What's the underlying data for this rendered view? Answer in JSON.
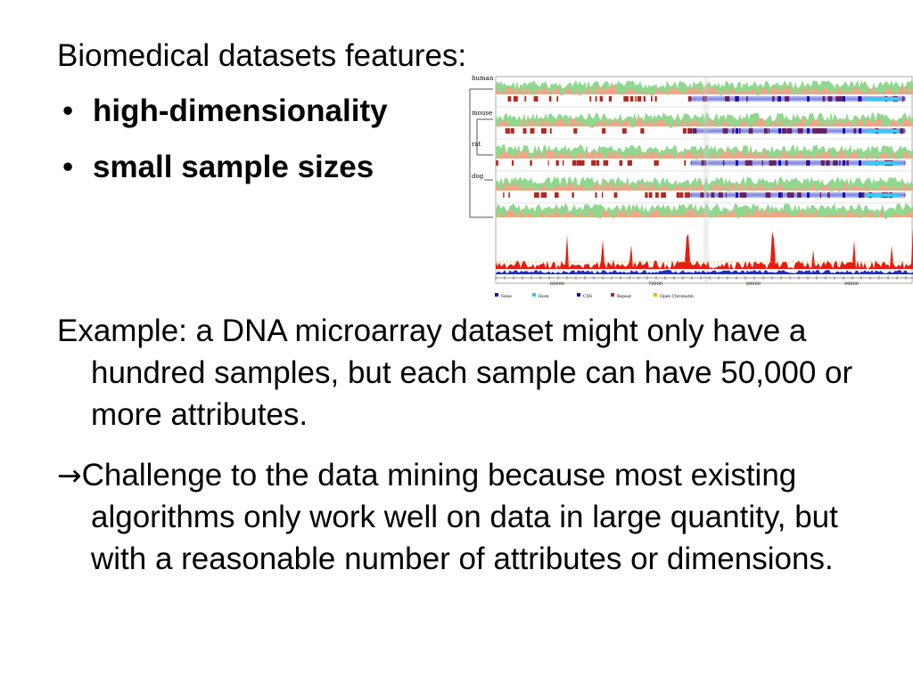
{
  "slide": {
    "heading": "Biomedical datasets features:",
    "bullets": [
      {
        "marker": "•",
        "text": "high-dimensionality"
      },
      {
        "marker": "•",
        "text": "small sample sizes"
      }
    ],
    "example_text": "Example: a DNA microarray dataset might only have a hundred samples, but each sample can have 50,000 or more attributes.",
    "challenge_arrow": "→",
    "challenge_text": "Challenge to the data mining because most existing algorithms only work well on data in large quantity, but with a reasonable number of attributes or dimensions."
  },
  "figure": {
    "species": [
      "human",
      "mouse",
      "rat",
      "dog"
    ],
    "axis_ticks": [
      "60000",
      "70000",
      "80000",
      "90000"
    ],
    "legend": [
      "Gene",
      "Exon",
      "CDS",
      "Repeat",
      "Open Chromatin"
    ],
    "colors": {
      "conservation_high": "#8ed98e",
      "conservation_low": "#f4a486",
      "repeat": "#b02a20",
      "exon": "#33ccee",
      "cds": "#1010c0",
      "gene": "#0018c8",
      "peak": "#e81c10",
      "baseline": "#1a2ecc"
    }
  }
}
